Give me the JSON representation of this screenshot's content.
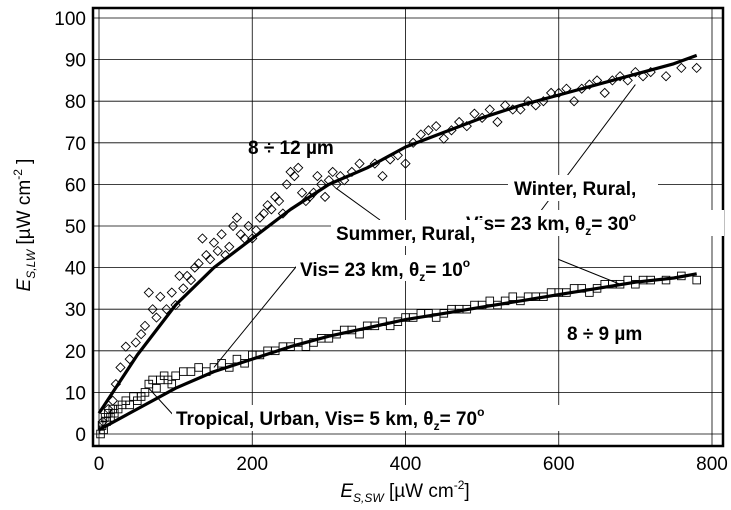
{
  "chart_data": {
    "type": "scatter",
    "title": "",
    "xlabel": {
      "main": "E",
      "sub": "S,SW",
      "unit": " [µW cm",
      "exp": "-2",
      "close": "]"
    },
    "ylabel": {
      "main": "E",
      "sub": "S,LW",
      "unit": " [µW cm",
      "exp": "-2",
      "close": " ]"
    },
    "xlim": [
      0,
      800
    ],
    "ylim": [
      0,
      100
    ],
    "x_ticks": [
      "0",
      "200",
      "400",
      "600",
      "800"
    ],
    "y_ticks": [
      "0",
      "10",
      "20",
      "30",
      "40",
      "50",
      "60",
      "70",
      "80",
      "90",
      "100"
    ],
    "grid": true,
    "series": [
      {
        "marker": "diamond",
        "label": "8 ÷ 12 µm",
        "fit_curve": [
          [
            0,
            5
          ],
          [
            25,
            12
          ],
          [
            50,
            19
          ],
          [
            100,
            31
          ],
          [
            150,
            40
          ],
          [
            200,
            47
          ],
          [
            250,
            54
          ],
          [
            300,
            60
          ],
          [
            350,
            64
          ],
          [
            400,
            69
          ],
          [
            450,
            72.5
          ],
          [
            500,
            76
          ],
          [
            550,
            79
          ],
          [
            600,
            81.5
          ],
          [
            650,
            84
          ],
          [
            700,
            86.5
          ],
          [
            750,
            89
          ],
          [
            780,
            91
          ]
        ],
        "points": [
          [
            5,
            3
          ],
          [
            12,
            6
          ],
          [
            18,
            8
          ],
          [
            22,
            12
          ],
          [
            28,
            16
          ],
          [
            35,
            21
          ],
          [
            40,
            18
          ],
          [
            48,
            22
          ],
          [
            55,
            24
          ],
          [
            60,
            26
          ],
          [
            65,
            34
          ],
          [
            70,
            30
          ],
          [
            75,
            28
          ],
          [
            80,
            33
          ],
          [
            88,
            30
          ],
          [
            95,
            34
          ],
          [
            100,
            31
          ],
          [
            105,
            38
          ],
          [
            110,
            35
          ],
          [
            115,
            38
          ],
          [
            120,
            37
          ],
          [
            125,
            40
          ],
          [
            130,
            41
          ],
          [
            135,
            47
          ],
          [
            140,
            43
          ],
          [
            145,
            42
          ],
          [
            150,
            46
          ],
          [
            155,
            44
          ],
          [
            160,
            48
          ],
          [
            165,
            43
          ],
          [
            170,
            45
          ],
          [
            175,
            50
          ],
          [
            180,
            52
          ],
          [
            185,
            48
          ],
          [
            190,
            47
          ],
          [
            195,
            50
          ],
          [
            200,
            47
          ],
          [
            205,
            49
          ],
          [
            210,
            52
          ],
          [
            215,
            53
          ],
          [
            220,
            55
          ],
          [
            225,
            54
          ],
          [
            230,
            57
          ],
          [
            235,
            56
          ],
          [
            240,
            53
          ],
          [
            245,
            60
          ],
          [
            250,
            63
          ],
          [
            255,
            62
          ],
          [
            260,
            64
          ],
          [
            265,
            58
          ],
          [
            270,
            56
          ],
          [
            275,
            57
          ],
          [
            280,
            58
          ],
          [
            285,
            62
          ],
          [
            290,
            60
          ],
          [
            295,
            57
          ],
          [
            300,
            61
          ],
          [
            305,
            63
          ],
          [
            310,
            60
          ],
          [
            315,
            62
          ],
          [
            320,
            61
          ],
          [
            330,
            63
          ],
          [
            340,
            65
          ],
          [
            360,
            65
          ],
          [
            370,
            62
          ],
          [
            380,
            66
          ],
          [
            390,
            67
          ],
          [
            400,
            65
          ],
          [
            410,
            70
          ],
          [
            420,
            72
          ],
          [
            430,
            73
          ],
          [
            440,
            74
          ],
          [
            450,
            71
          ],
          [
            460,
            73
          ],
          [
            470,
            75
          ],
          [
            480,
            74
          ],
          [
            490,
            77
          ],
          [
            500,
            76
          ],
          [
            510,
            78
          ],
          [
            520,
            75
          ],
          [
            530,
            79
          ],
          [
            540,
            78
          ],
          [
            550,
            78
          ],
          [
            560,
            80
          ],
          [
            570,
            79
          ],
          [
            580,
            80
          ],
          [
            590,
            82
          ],
          [
            600,
            82
          ],
          [
            610,
            83
          ],
          [
            620,
            80
          ],
          [
            630,
            83
          ],
          [
            640,
            84
          ],
          [
            650,
            85
          ],
          [
            660,
            82
          ],
          [
            670,
            85
          ],
          [
            680,
            86
          ],
          [
            690,
            85
          ],
          [
            700,
            87
          ],
          [
            710,
            86
          ],
          [
            720,
            87
          ],
          [
            740,
            86
          ],
          [
            760,
            88
          ],
          [
            780,
            88
          ]
        ]
      },
      {
        "marker": "square",
        "label": "8 ÷ 9 µm",
        "fit_curve": [
          [
            0,
            1
          ],
          [
            50,
            6
          ],
          [
            100,
            11
          ],
          [
            150,
            15
          ],
          [
            200,
            18
          ],
          [
            250,
            21
          ],
          [
            300,
            23.5
          ],
          [
            350,
            25.5
          ],
          [
            400,
            27.5
          ],
          [
            450,
            29
          ],
          [
            500,
            30.5
          ],
          [
            550,
            32
          ],
          [
            600,
            33.5
          ],
          [
            650,
            35
          ],
          [
            700,
            36.5
          ],
          [
            750,
            37.5
          ],
          [
            780,
            38.5
          ]
        ],
        "points": [
          [
            2,
            0
          ],
          [
            4,
            2
          ],
          [
            6,
            1
          ],
          [
            8,
            4
          ],
          [
            10,
            3
          ],
          [
            12,
            5
          ],
          [
            15,
            4
          ],
          [
            18,
            6
          ],
          [
            20,
            5
          ],
          [
            25,
            6
          ],
          [
            30,
            7
          ],
          [
            35,
            8
          ],
          [
            40,
            7
          ],
          [
            45,
            9
          ],
          [
            50,
            8
          ],
          [
            55,
            9
          ],
          [
            60,
            10
          ],
          [
            65,
            12
          ],
          [
            70,
            13
          ],
          [
            75,
            11
          ],
          [
            80,
            13
          ],
          [
            85,
            14
          ],
          [
            90,
            13
          ],
          [
            95,
            12
          ],
          [
            100,
            14
          ],
          [
            110,
            15
          ],
          [
            120,
            15
          ],
          [
            130,
            16
          ],
          [
            140,
            15
          ],
          [
            150,
            16
          ],
          [
            160,
            17
          ],
          [
            170,
            16
          ],
          [
            180,
            18
          ],
          [
            190,
            17
          ],
          [
            200,
            19
          ],
          [
            210,
            19
          ],
          [
            220,
            20
          ],
          [
            230,
            20
          ],
          [
            240,
            21
          ],
          [
            250,
            21
          ],
          [
            260,
            22
          ],
          [
            270,
            21
          ],
          [
            280,
            22
          ],
          [
            290,
            23
          ],
          [
            300,
            23
          ],
          [
            310,
            24
          ],
          [
            320,
            25
          ],
          [
            330,
            25
          ],
          [
            340,
            24
          ],
          [
            350,
            26
          ],
          [
            360,
            26
          ],
          [
            370,
            27
          ],
          [
            380,
            26
          ],
          [
            390,
            27
          ],
          [
            400,
            28
          ],
          [
            410,
            28
          ],
          [
            420,
            29
          ],
          [
            430,
            29
          ],
          [
            440,
            28
          ],
          [
            450,
            29
          ],
          [
            460,
            30
          ],
          [
            470,
            30
          ],
          [
            480,
            30
          ],
          [
            490,
            31
          ],
          [
            500,
            31
          ],
          [
            510,
            32
          ],
          [
            520,
            31
          ],
          [
            530,
            32
          ],
          [
            540,
            33
          ],
          [
            550,
            32
          ],
          [
            560,
            33
          ],
          [
            570,
            33
          ],
          [
            580,
            33
          ],
          [
            590,
            34
          ],
          [
            600,
            34
          ],
          [
            610,
            34
          ],
          [
            620,
            35
          ],
          [
            630,
            35
          ],
          [
            640,
            34
          ],
          [
            650,
            35
          ],
          [
            660,
            36
          ],
          [
            670,
            36
          ],
          [
            680,
            36
          ],
          [
            690,
            37
          ],
          [
            700,
            36
          ],
          [
            710,
            37
          ],
          [
            720,
            37
          ],
          [
            740,
            37
          ],
          [
            760,
            38
          ],
          [
            780,
            37
          ]
        ]
      }
    ],
    "annotations": [
      {
        "id": "ann-8-12",
        "text": "8 ÷ 12 µm"
      },
      {
        "id": "ann-8-9",
        "text": "8 ÷ 9 µm"
      },
      {
        "id": "ann-winter-1",
        "text": "Winter, Rural,"
      },
      {
        "id": "ann-winter-2",
        "pre": "Vis= 23 km, θ",
        "sub": "z",
        "post": "= 30",
        "sup": "o"
      },
      {
        "id": "ann-summer-1",
        "text": "Summer, Rural,"
      },
      {
        "id": "ann-summer-2",
        "pre": "Vis= 23 km, θ",
        "sub": "z",
        "post": "= 10",
        "sup": "o"
      },
      {
        "id": "ann-tropical",
        "pre": "Tropical, Urban, Vis= 5 km, θ",
        "sub": "z",
        "post": "= 70",
        "sup": "o"
      }
    ]
  }
}
